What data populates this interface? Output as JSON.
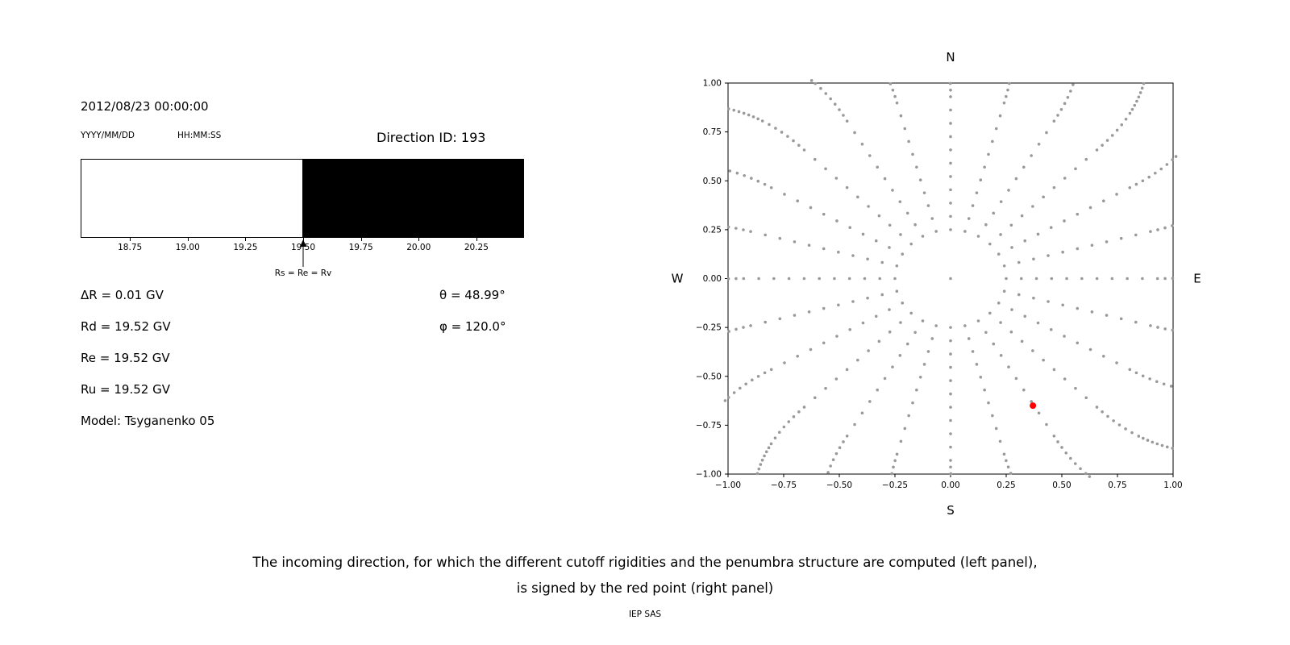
{
  "left_panel": {
    "datetime": "2012/08/23 00:00:00",
    "date_format_label": "YYYY/MM/DD",
    "time_format_label": "HH:MM:SS",
    "direction_id": "Direction ID: 193",
    "values": [
      "ΔR = 0.01 GV",
      "Rd = 19.52 GV",
      "Re = 19.52 GV",
      "Ru = 19.52 GV",
      "Model: Tsyganenko 05"
    ],
    "angles": [
      "θ = 48.99°",
      "φ = 120.0°"
    ]
  },
  "caption": {
    "line1": "The incoming direction, for which the different cutoff rigidities and the penumbra structure are computed (left panel),",
    "line2": "is signed by the red point (right panel)",
    "credit": "IEP SAS"
  },
  "chart_data": [
    {
      "id": "penumbra-structure",
      "type": "bar",
      "xlim": [
        18.54,
        20.46
      ],
      "x_ticks": [
        18.75,
        19.0,
        19.25,
        19.5,
        19.75,
        20.0,
        20.25
      ],
      "regions": [
        {
          "from": 18.54,
          "to": 19.5,
          "color": "#ffffff",
          "meaning": "allowed"
        },
        {
          "from": 19.5,
          "to": 20.46,
          "color": "#000000",
          "meaning": "forbidden"
        }
      ],
      "marker": {
        "x": 19.5,
        "label": "Rs = Re = Rv"
      }
    },
    {
      "id": "incoming-direction-map",
      "type": "scatter",
      "xlim": [
        -1,
        1
      ],
      "ylim": [
        -1,
        1
      ],
      "x_ticks": [
        -1.0,
        -0.75,
        -0.5,
        -0.25,
        0.0,
        0.25,
        0.5,
        0.75,
        1.0
      ],
      "y_ticks": [
        -1.0,
        -0.75,
        -0.5,
        -0.25,
        0.0,
        0.25,
        0.5,
        0.75,
        1.0
      ],
      "compass_labels": {
        "top": "N",
        "bottom": "S",
        "left": "W",
        "right": "E"
      },
      "grid": false,
      "gray_points": {
        "pattern": "radial-spokes",
        "spoke_count": 24,
        "angle_step_deg": 15,
        "r_start": 0.25,
        "r_end": 1.45,
        "color": "#999999"
      },
      "highlight_point": {
        "x": 0.37,
        "y": -0.65,
        "color": "#ff0000"
      }
    }
  ]
}
